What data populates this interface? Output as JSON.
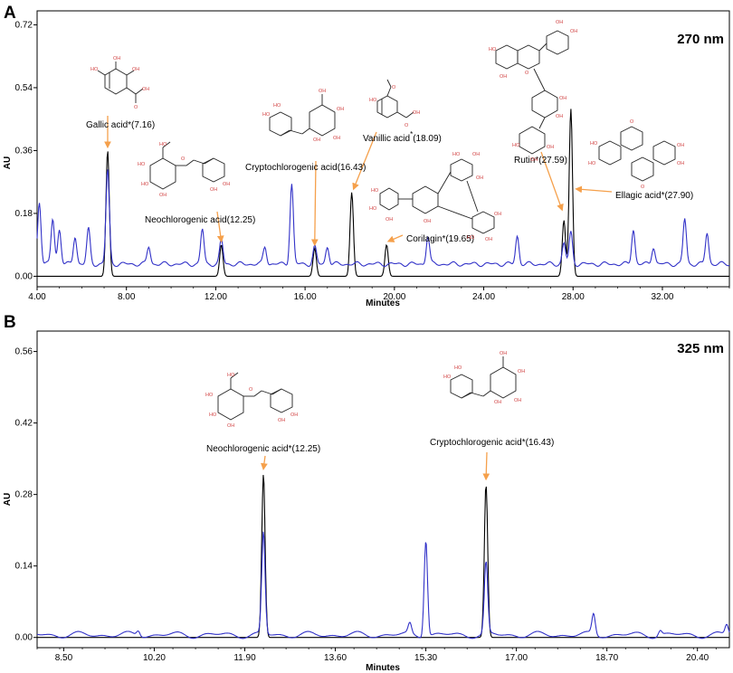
{
  "chart_data": [
    {
      "type": "line",
      "panel_label": "A",
      "wavelength": "270 nm",
      "xlabel": "Minutes",
      "ylabel": "AU",
      "xlim": [
        4.0,
        35.0
      ],
      "ylim": [
        -0.03,
        0.76
      ],
      "x_ticks": [
        4.0,
        8.0,
        12.0,
        16.0,
        20.0,
        24.0,
        28.0,
        32.0
      ],
      "x_tick_labels": [
        "4.00",
        "8.00",
        "12.00",
        "16.00",
        "20.00",
        "24.00",
        "28.00",
        "32.00"
      ],
      "y_ticks": [
        0.0,
        0.18,
        0.36,
        0.54,
        0.72
      ],
      "y_tick_labels": [
        "0.00",
        "0.18",
        "0.36",
        "0.54",
        "0.72"
      ],
      "series": [
        {
          "color": "#000000",
          "baseline": 0.0,
          "peaks": [
            [
              7.16,
              0.36
            ],
            [
              12.25,
              0.09
            ],
            [
              16.43,
              0.08
            ],
            [
              18.09,
              0.24
            ],
            [
              19.65,
              0.09
            ],
            [
              27.59,
              0.16
            ],
            [
              27.9,
              0.48
            ]
          ]
        },
        {
          "color": "#3232c8",
          "baseline": 0.035,
          "peaks": [
            [
              4.1,
              0.18
            ],
            [
              4.7,
              0.13
            ],
            [
              5.0,
              0.1
            ],
            [
              5.7,
              0.08
            ],
            [
              6.3,
              0.1
            ],
            [
              7.16,
              0.27
            ],
            [
              9.0,
              0.05
            ],
            [
              11.4,
              0.1
            ],
            [
              12.25,
              0.07
            ],
            [
              14.2,
              0.05
            ],
            [
              15.4,
              0.23
            ],
            [
              16.43,
              0.05
            ],
            [
              17.0,
              0.05
            ],
            [
              21.5,
              0.08
            ],
            [
              25.5,
              0.08
            ],
            [
              27.59,
              0.06
            ],
            [
              27.9,
              0.09
            ],
            [
              30.7,
              0.1
            ],
            [
              31.6,
              0.05
            ],
            [
              33.0,
              0.13
            ],
            [
              34.0,
              0.09
            ]
          ]
        }
      ],
      "annotations": [
        {
          "label": "Gallic acid*(7.16)",
          "x": 7.16
        },
        {
          "label": "Neochlorogenic acid(12.25)",
          "x": 12.25
        },
        {
          "label": "Cryptochlorogenic acid(16.43)",
          "x": 16.43
        },
        {
          "label": "Vanillic acid",
          "label_sup": "*",
          "label_tail": "(18.09)",
          "x": 18.09
        },
        {
          "label": "Corilagin*(19.65)",
          "x": 19.65
        },
        {
          "label": "Rutin*(27.59)",
          "x": 27.59
        },
        {
          "label": "Ellagic acid*(27.90)",
          "x": 27.9
        }
      ],
      "arrow_color": "#f5a04b"
    },
    {
      "type": "line",
      "panel_label": "B",
      "wavelength": "325 nm",
      "xlabel": "Minutes",
      "ylabel": "AU",
      "xlim": [
        8.0,
        21.0
      ],
      "ylim": [
        -0.02,
        0.6
      ],
      "x_ticks": [
        8.5,
        10.2,
        11.9,
        13.6,
        15.3,
        17.0,
        18.7,
        20.4
      ],
      "x_tick_labels": [
        "8.50",
        "10.20",
        "11.90",
        "13.60",
        "15.30",
        "17.00",
        "18.70",
        "20.40"
      ],
      "y_ticks": [
        0.0,
        0.14,
        0.28,
        0.42,
        0.56
      ],
      "y_tick_labels": [
        "0.00",
        "0.14",
        "0.28",
        "0.42",
        "0.56"
      ],
      "series": [
        {
          "color": "#000000",
          "baseline": 0.0,
          "peaks": [
            [
              12.25,
              0.32
            ],
            [
              16.43,
              0.3
            ]
          ]
        },
        {
          "color": "#3232c8",
          "baseline": 0.005,
          "peaks": [
            [
              9.9,
              0.01
            ],
            [
              12.25,
              0.2
            ],
            [
              15.0,
              0.02
            ],
            [
              15.3,
              0.19
            ],
            [
              16.43,
              0.14
            ],
            [
              18.45,
              0.04
            ],
            [
              19.7,
              0.01
            ],
            [
              20.95,
              0.02
            ]
          ]
        }
      ],
      "annotations": [
        {
          "label": "Neochlorogenic acid*(12.25)",
          "x": 12.25
        },
        {
          "label": "Cryptochlorogenic acid*(16.43)",
          "x": 16.43
        }
      ],
      "arrow_color": "#f5a04b"
    }
  ]
}
